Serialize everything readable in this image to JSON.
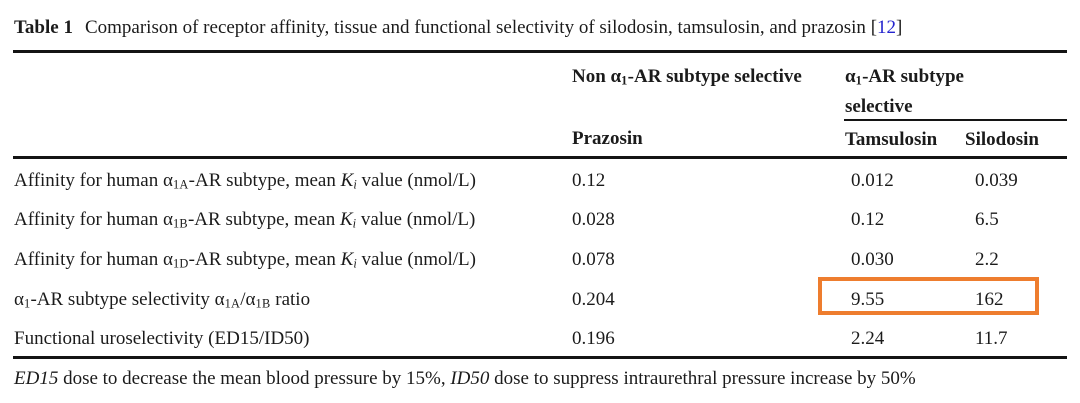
{
  "title": {
    "label": "Table 1",
    "text": "Comparison of receptor affinity, tissue and functional selectivity of silodosin, tamsulosin, and prazosin",
    "citation_open": "[",
    "citation": "12",
    "citation_close": "]"
  },
  "table": {
    "group_headers": {
      "non_selective": [
        {
          "t": "Non α"
        },
        {
          "t": "1",
          "s": "sub"
        },
        {
          "t": "-AR subtype selective"
        }
      ],
      "selective": [
        {
          "t": "α"
        },
        {
          "t": "1",
          "s": "sub"
        },
        {
          "t": "-AR subtype selective"
        }
      ]
    },
    "columns": [
      "Prazosin",
      "Tamsulosin",
      "Silodosin"
    ],
    "rows": [
      {
        "label": [
          {
            "t": "Affinity for human α"
          },
          {
            "t": "1A",
            "s": "sub"
          },
          {
            "t": "-AR subtype, mean "
          },
          {
            "t": "K",
            "s": "i"
          },
          {
            "t": "i",
            "s": "isub"
          },
          {
            "t": " value (nmol/L)"
          }
        ],
        "values": [
          "0.12",
          "0.012",
          "0.039"
        ]
      },
      {
        "label": [
          {
            "t": "Affinity for human α"
          },
          {
            "t": "1B",
            "s": "sub"
          },
          {
            "t": "-AR subtype, mean "
          },
          {
            "t": "K",
            "s": "i"
          },
          {
            "t": "i",
            "s": "isub"
          },
          {
            "t": " value (nmol/L)"
          }
        ],
        "values": [
          "0.028",
          "0.12",
          "6.5"
        ]
      },
      {
        "label": [
          {
            "t": "Affinity for human α"
          },
          {
            "t": "1D",
            "s": "sub"
          },
          {
            "t": "-AR subtype, mean "
          },
          {
            "t": "K",
            "s": "i"
          },
          {
            "t": "i",
            "s": "isub"
          },
          {
            "t": " value (nmol/L)"
          }
        ],
        "values": [
          "0.078",
          "0.030",
          "2.2"
        ]
      },
      {
        "label": [
          {
            "t": "α"
          },
          {
            "t": "1",
            "s": "sub"
          },
          {
            "t": "-AR subtype selectivity α"
          },
          {
            "t": "1A",
            "s": "sub"
          },
          {
            "t": "/α"
          },
          {
            "t": "1B",
            "s": "sub"
          },
          {
            "t": " ratio"
          }
        ],
        "values": [
          "0.204",
          "9.55",
          "162"
        ]
      },
      {
        "label": [
          {
            "t": "Functional uroselectivity (ED15/ID50)"
          }
        ],
        "values": [
          "0.196",
          "2.24",
          "11.7"
        ]
      }
    ],
    "highlight": {
      "row_index": 3,
      "columns": [
        "Tamsulosin",
        "Silodosin"
      ],
      "values": [
        "9.55",
        "162"
      ]
    }
  },
  "footnote": [
    {
      "t": "ED15",
      "s": "i"
    },
    {
      "t": " dose to decrease the mean blood pressure by 15%, "
    },
    {
      "t": "ID50",
      "s": "i"
    },
    {
      "t": " dose to suppress intraurethral pressure increase by 50%"
    }
  ],
  "colors": {
    "highlight_box": "#EE7D2E",
    "citation": "#2323CE",
    "text": "#1B1B1B",
    "rule": "#141414"
  }
}
